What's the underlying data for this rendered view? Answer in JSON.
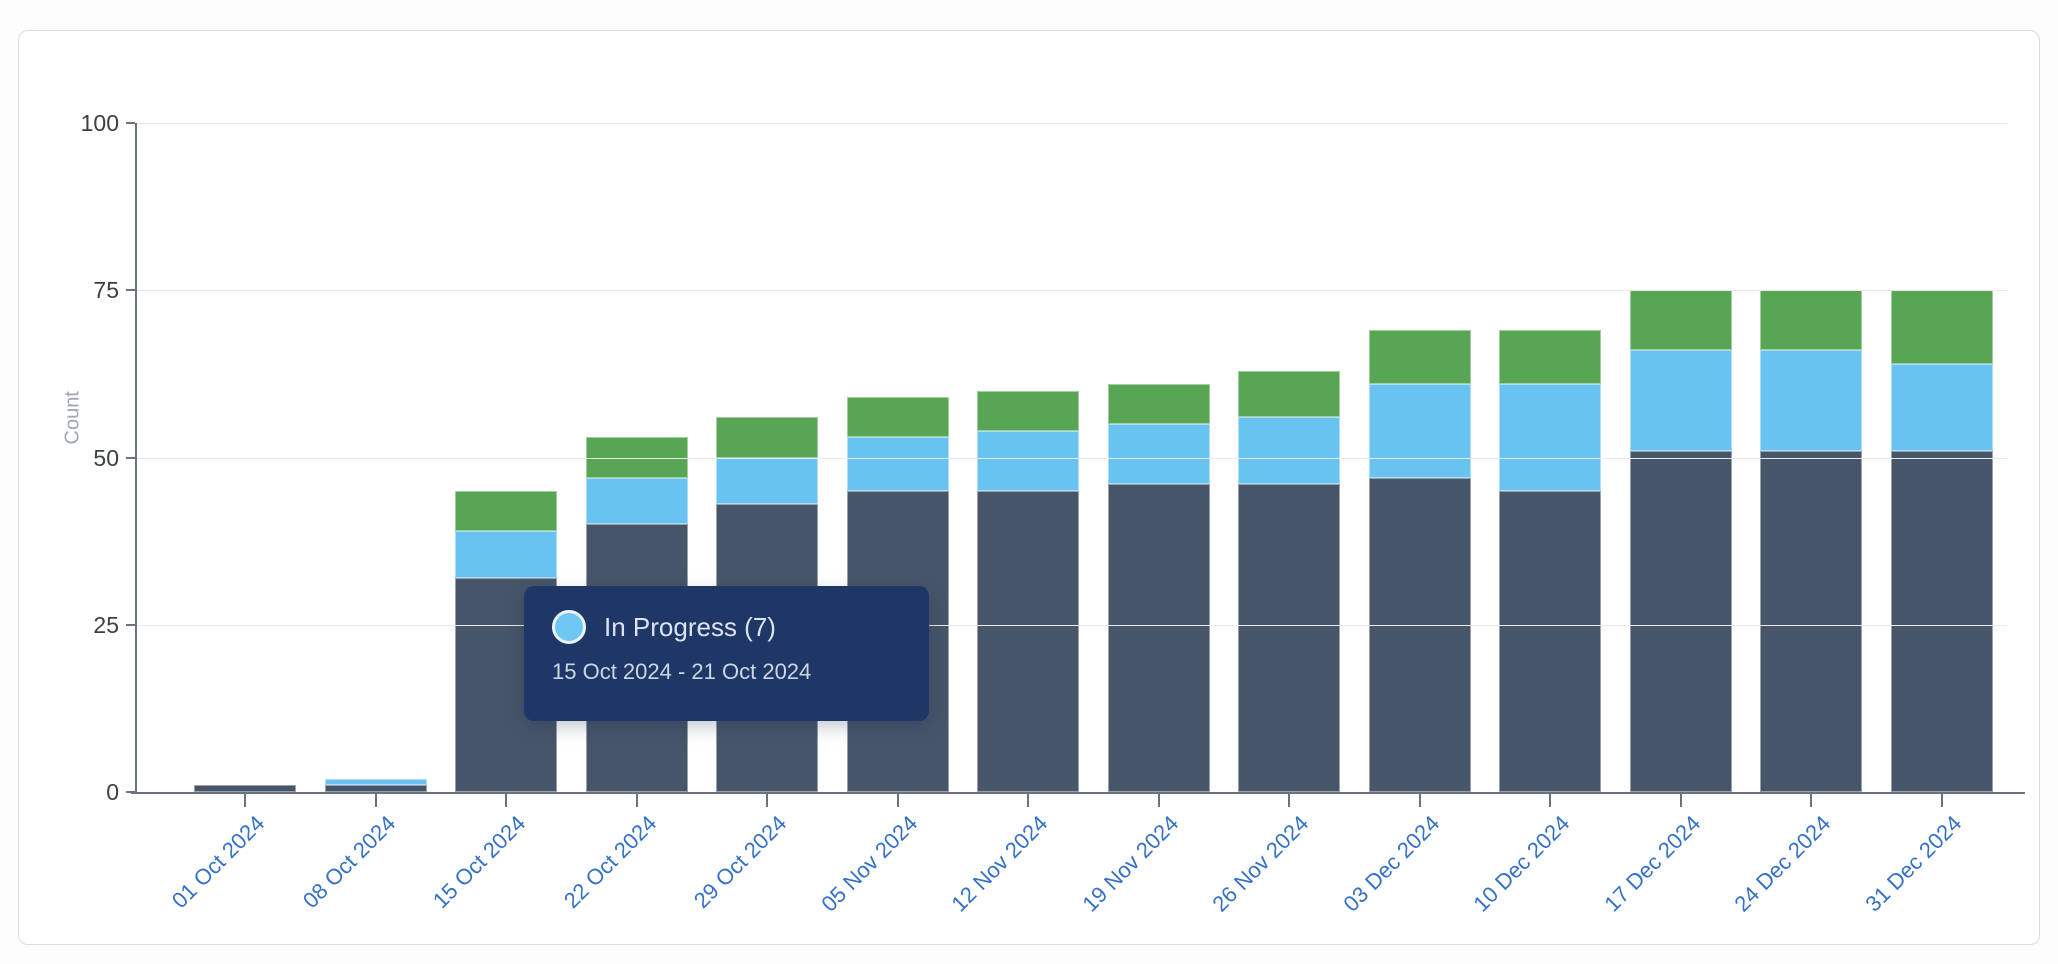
{
  "chart_data": {
    "type": "bar",
    "stacked": true,
    "ylabel": "Count",
    "ylim": [
      0,
      100
    ],
    "yticks": [
      0,
      25,
      50,
      75,
      100
    ],
    "grid": true,
    "legend": "none (series identified via hover tooltip)",
    "categories": [
      "01 Oct 2024",
      "08 Oct 2024",
      "15 Oct 2024",
      "22 Oct 2024",
      "29 Oct 2024",
      "05 Nov 2024",
      "12 Nov 2024",
      "19 Nov 2024",
      "26 Nov 2024",
      "03 Dec 2024",
      "10 Dec 2024",
      "17 Dec 2024",
      "24 Dec 2024",
      "31 Dec 2024"
    ],
    "series": [
      {
        "id": "bottom-navy",
        "name": "",
        "color": "#475569",
        "values": [
          1,
          1,
          32,
          40,
          43,
          45,
          45,
          46,
          46,
          47,
          45,
          51,
          51,
          51
        ]
      },
      {
        "id": "middle-blue",
        "name": "In Progress",
        "color": "#68c3f0",
        "values": [
          0,
          1,
          7,
          7,
          7,
          8,
          9,
          9,
          10,
          14,
          16,
          15,
          15,
          13
        ]
      },
      {
        "id": "top-green",
        "name": "",
        "color": "#58a653",
        "values": [
          0,
          0,
          6,
          6,
          6,
          6,
          6,
          6,
          7,
          8,
          8,
          9,
          9,
          11
        ]
      }
    ],
    "totals": [
      1,
      2,
      45,
      53,
      56,
      59,
      60,
      61,
      63,
      69,
      69,
      75,
      75,
      75
    ]
  },
  "tooltip": {
    "title": "In Progress (7)",
    "series_label": "In Progress",
    "count": 7,
    "date_range": "15 Oct 2024 - 21 Oct 2024",
    "marker_color": "#6ec6f3",
    "background_color": "#1e3766"
  },
  "axes": {
    "y_label": "Count",
    "y_tick_labels": [
      "0",
      "25",
      "50",
      "75",
      "100"
    ],
    "x_tick_label_color": "#3571c6",
    "y_tick_label_color": "#3c4043"
  },
  "colors": {
    "bar_navy": "#475569",
    "bar_blue": "#68c3f0",
    "bar_green": "#58a653",
    "gridline": "#e8e9eb",
    "axis": "#6b7280",
    "card_border": "#dbdde2",
    "card_background": "#ffffff"
  }
}
